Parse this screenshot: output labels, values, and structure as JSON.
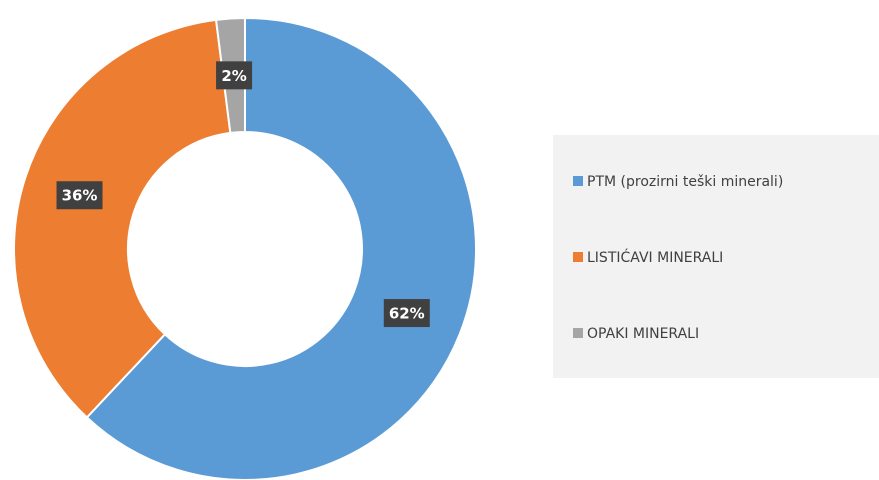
{
  "chart_data": {
    "type": "donut",
    "categories": [
      "PTM (prozirni teški minerali)",
      "LISTIĆAVI MINERALI",
      "OPAKI MINERALI"
    ],
    "values": [
      62,
      36,
      2
    ],
    "value_labels": [
      "62%",
      "36%",
      "2%"
    ],
    "colors": [
      "#5b9bd5",
      "#ed7d31",
      "#a5a5a5"
    ],
    "legend": "right"
  }
}
